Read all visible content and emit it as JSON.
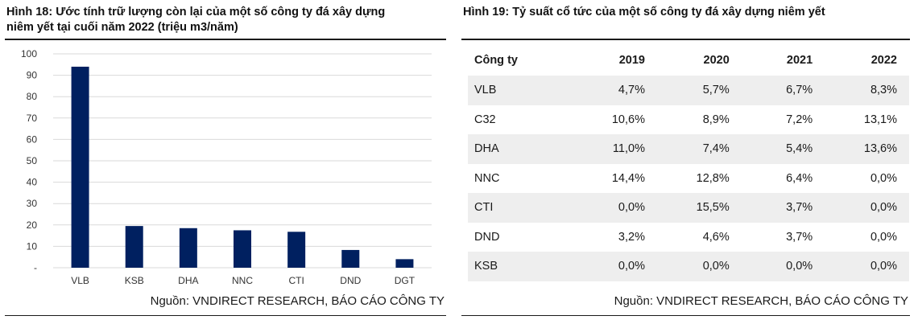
{
  "figure18": {
    "title_line1": "Hình 18: Ước tính trữ lượng còn lại của một số công ty đá xây dựng",
    "title_line2": "niêm yết tại cuối năm 2022 (triệu m3/năm)",
    "source": "Nguồn: VNDIRECT RESEARCH, BÁO CÁO CÔNG TY"
  },
  "figure19": {
    "title": "Hình 19: Tỷ suất cổ tức của một số công ty đá xây dựng niêm yết",
    "source": "Nguồn: VNDIRECT RESEARCH, BÁO CÁO CÔNG TY",
    "headers": [
      "Công ty",
      "2019",
      "2020",
      "2021",
      "2022"
    ],
    "rows": [
      {
        "name": "VLB",
        "values": [
          "4,7%",
          "5,7%",
          "6,7%",
          "8,3%"
        ]
      },
      {
        "name": "C32",
        "values": [
          "10,6%",
          "8,9%",
          "7,2%",
          "13,1%"
        ]
      },
      {
        "name": "DHA",
        "values": [
          "11,0%",
          "7,4%",
          "5,4%",
          "13,6%"
        ]
      },
      {
        "name": "NNC",
        "values": [
          "14,4%",
          "12,8%",
          "6,4%",
          "0,0%"
        ]
      },
      {
        "name": "CTI",
        "values": [
          "0,0%",
          "15,5%",
          "3,7%",
          "0,0%"
        ]
      },
      {
        "name": "DND",
        "values": [
          "3,2%",
          "4,6%",
          "3,7%",
          "0,0%"
        ]
      },
      {
        "name": "KSB",
        "values": [
          "0,0%",
          "0,0%",
          "0,0%",
          "0,0%"
        ]
      }
    ]
  },
  "chart_data": {
    "type": "bar",
    "categories": [
      "VLB",
      "KSB",
      "DHA",
      "NNC",
      "CTI",
      "DND",
      "DGT"
    ],
    "values": [
      94,
      19.5,
      18.5,
      17.5,
      16.8,
      8.3,
      4
    ],
    "yticks": [
      "-",
      "10",
      "20",
      "30",
      "40",
      "50",
      "60",
      "70",
      "80",
      "90",
      "100"
    ],
    "ylim": [
      0,
      100
    ],
    "grid": true,
    "bar_color": "#002060",
    "grid_color": "#d9d9d9"
  }
}
